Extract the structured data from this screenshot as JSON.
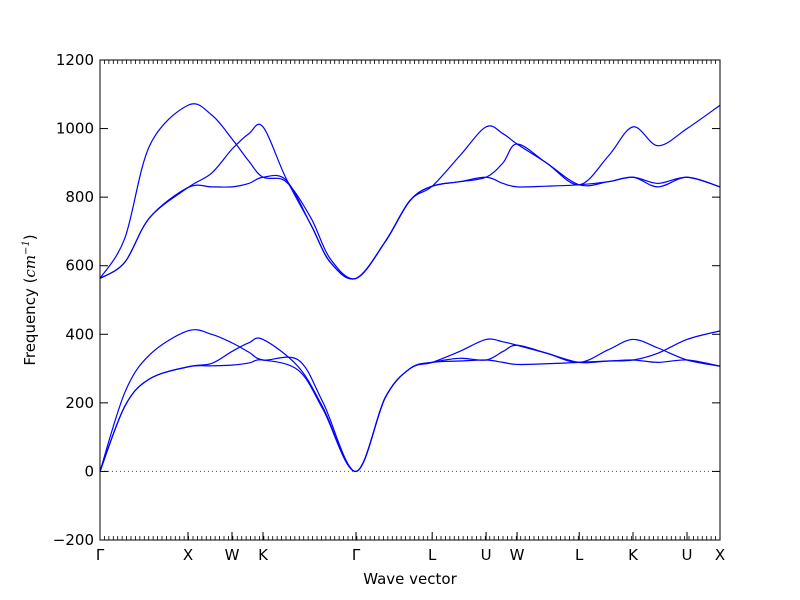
{
  "chart_data": {
    "type": "line",
    "xlabel": "Wave vector",
    "ylabel": {
      "text": "Frequency (",
      "unit_base": "cm",
      "unit_exp": "−1",
      "close": ")"
    },
    "ylim": [
      -200,
      1200
    ],
    "yticks": [
      -200,
      0,
      200,
      400,
      600,
      800,
      1000,
      1200
    ],
    "xlim": [
      0,
      1
    ],
    "xticks": [
      {
        "label": "Γ",
        "x": 0.0
      },
      {
        "label": "X",
        "x": 0.1419
      },
      {
        "label": "W",
        "x": 0.2129
      },
      {
        "label": "K",
        "x": 0.2629
      },
      {
        "label": "Γ",
        "x": 0.4129
      },
      {
        "label": "L",
        "x": 0.5358
      },
      {
        "label": "U",
        "x": 0.6227
      },
      {
        "label": "W",
        "x": 0.6727
      },
      {
        "label": "L",
        "x": 0.7729
      },
      {
        "label": "K",
        "x": 0.8597
      },
      {
        "label": "U",
        "x": 0.9468
      },
      {
        "label": "X",
        "x": 1.0
      }
    ],
    "zero_line": {
      "y": 0,
      "style": "dotted",
      "color": "#555555"
    },
    "grid": false,
    "legend": "none",
    "line_color": "#0000ff",
    "series": [
      {
        "x": [
          0.0,
          0.04,
          0.08,
          0.1419,
          0.18,
          0.2129,
          0.24,
          0.2629,
          0.32,
          0.36,
          0.4129,
          0.46,
          0.5,
          0.5358,
          0.58,
          0.6227,
          0.65,
          0.6727,
          0.72,
          0.7729,
          0.82,
          0.8597,
          0.9,
          0.9468,
          1.0
        ],
        "y": [
          0,
          190,
          270,
          305,
          308,
          310,
          316,
          325,
          295,
          180,
          0,
          215,
          300,
          318,
          322,
          325,
          318,
          312,
          314,
          318,
          322,
          325,
          318,
          325,
          307
        ]
      },
      {
        "x": [
          0.0,
          0.04,
          0.08,
          0.1419,
          0.18,
          0.2129,
          0.24,
          0.2629,
          0.32,
          0.36,
          0.4129,
          0.46,
          0.5,
          0.5358,
          0.58,
          0.6227,
          0.65,
          0.6727,
          0.72,
          0.7729,
          0.82,
          0.8597,
          0.9,
          0.9468,
          1.0
        ],
        "y": [
          0,
          190,
          270,
          305,
          315,
          350,
          375,
          385,
          305,
          185,
          0,
          215,
          300,
          318,
          330,
          325,
          350,
          368,
          345,
          318,
          322,
          325,
          345,
          385,
          410
        ]
      },
      {
        "x": [
          0.0,
          0.04,
          0.08,
          0.1419,
          0.18,
          0.2129,
          0.24,
          0.2629,
          0.32,
          0.36,
          0.4129,
          0.46,
          0.5,
          0.5358,
          0.58,
          0.6227,
          0.65,
          0.6727,
          0.72,
          0.7729,
          0.82,
          0.8597,
          0.9,
          0.9468,
          1.0
        ],
        "y": [
          0,
          230,
          340,
          410,
          400,
          375,
          348,
          325,
          325,
          200,
          0,
          215,
          300,
          318,
          350,
          385,
          378,
          368,
          345,
          318,
          355,
          385,
          360,
          325,
          307
        ]
      },
      {
        "x": [
          0.0,
          0.04,
          0.08,
          0.1419,
          0.18,
          0.2129,
          0.24,
          0.2629,
          0.3,
          0.34,
          0.3714,
          0.4129,
          0.46,
          0.5,
          0.5358,
          0.58,
          0.6227,
          0.65,
          0.6727,
          0.72,
          0.7729,
          0.82,
          0.8597,
          0.9,
          0.9468,
          1.0
        ],
        "y": [
          563,
          610,
          740,
          828,
          830,
          830,
          840,
          858,
          850,
          720,
          610,
          563,
          670,
          790,
          832,
          845,
          858,
          840,
          830,
          832,
          836,
          845,
          858,
          840,
          858,
          830
        ]
      },
      {
        "x": [
          0.0,
          0.04,
          0.08,
          0.1419,
          0.18,
          0.2129,
          0.24,
          0.2629,
          0.3,
          0.34,
          0.3714,
          0.4129,
          0.46,
          0.5,
          0.5358,
          0.58,
          0.6227,
          0.65,
          0.6727,
          0.72,
          0.7729,
          0.82,
          0.8597,
          0.9,
          0.9468,
          1.0
        ],
        "y": [
          563,
          610,
          740,
          828,
          870,
          940,
          985,
          1005,
          855,
          720,
          610,
          563,
          670,
          790,
          832,
          920,
          1005,
          985,
          955,
          900,
          836,
          920,
          1005,
          950,
          1000,
          1068
        ]
      },
      {
        "x": [
          0.0,
          0.04,
          0.08,
          0.1419,
          0.18,
          0.2129,
          0.24,
          0.2629,
          0.3,
          0.34,
          0.3714,
          0.4129,
          0.46,
          0.5,
          0.5358,
          0.58,
          0.6227,
          0.65,
          0.6727,
          0.72,
          0.7729,
          0.82,
          0.8597,
          0.9,
          0.9468,
          1.0
        ],
        "y": [
          563,
          680,
          950,
          1068,
          1040,
          970,
          905,
          858,
          845,
          740,
          620,
          563,
          670,
          790,
          832,
          845,
          858,
          900,
          955,
          900,
          836,
          845,
          858,
          830,
          858,
          830
        ]
      }
    ]
  }
}
